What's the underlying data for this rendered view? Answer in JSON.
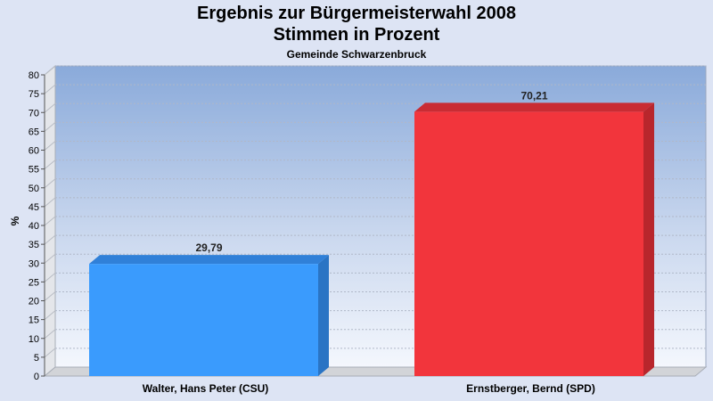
{
  "chart_data": {
    "type": "bar",
    "title": "Ergebnis zur Bürgermeisterwahl 2008",
    "subtitle": "Stimmen in Prozent",
    "subtitle2": "Gemeinde Schwarzenbruck",
    "ylabel": "%",
    "ylim": [
      0,
      80
    ],
    "ytick_step": 5,
    "grid": true,
    "categories": [
      "Walter, Hans Peter (CSU)",
      "Ernstberger, Bernd (SPD)"
    ],
    "values": [
      29.79,
      70.21
    ],
    "value_labels": [
      "29,79",
      "70,21"
    ],
    "colors": [
      "#3a9bfd",
      "#f2353c"
    ],
    "side_colors": [
      "#2a74c4",
      "#b8262c"
    ],
    "top_colors": [
      "#3080d8",
      "#c92c33"
    ]
  }
}
